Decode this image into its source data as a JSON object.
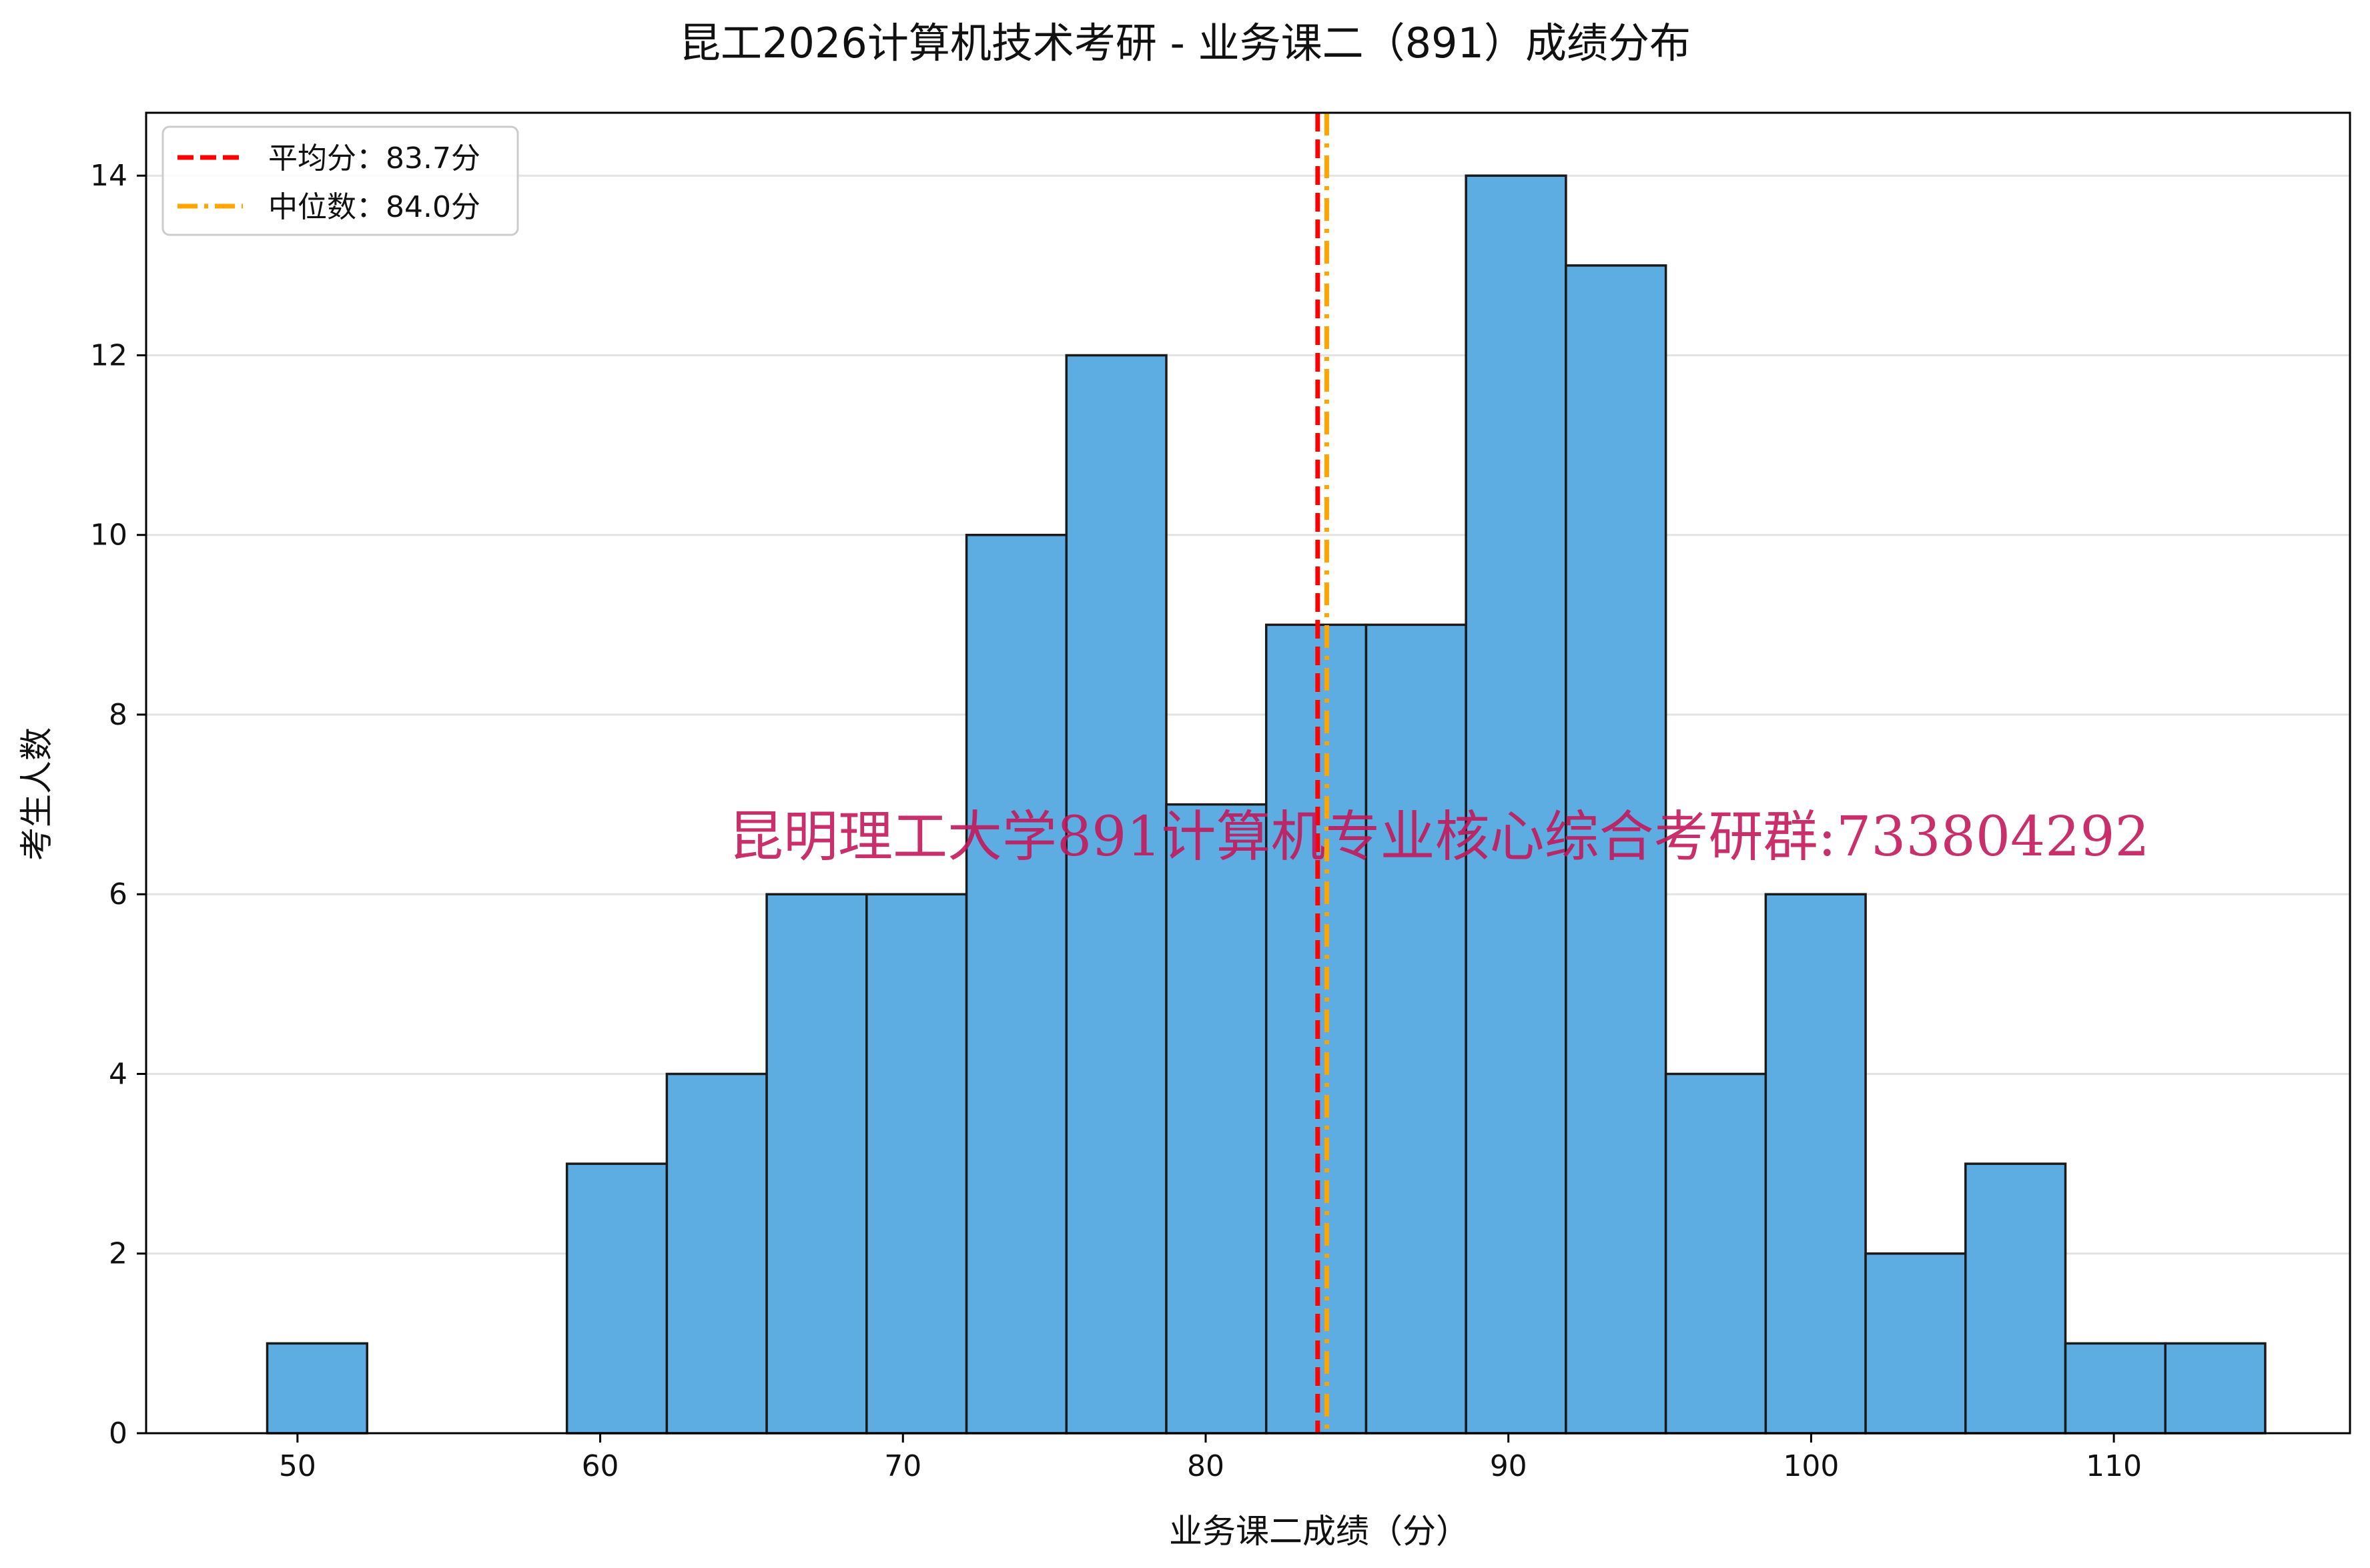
{
  "chart_data": {
    "type": "bar",
    "title": "昆工2026计算机技术考研 - 业务课二（891）成绩分布",
    "xlabel": "业务课二成绩（分）",
    "ylabel": "考生人数",
    "xlim": [
      45,
      117.8
    ],
    "ylim": [
      0,
      14.7
    ],
    "xticks": [
      50,
      60,
      70,
      80,
      90,
      100,
      110
    ],
    "yticks": [
      0,
      2,
      4,
      6,
      8,
      10,
      12,
      14
    ],
    "grid": "horizontal",
    "legend_position": "top-left",
    "bins": [
      {
        "start": 49.0,
        "end": 52.3,
        "count": 1
      },
      {
        "start": 52.3,
        "end": 55.6,
        "count": 0
      },
      {
        "start": 55.6,
        "end": 58.9,
        "count": 0
      },
      {
        "start": 58.9,
        "end": 62.2,
        "count": 3
      },
      {
        "start": 62.2,
        "end": 65.5,
        "count": 4
      },
      {
        "start": 65.5,
        "end": 68.8,
        "count": 6
      },
      {
        "start": 68.8,
        "end": 72.1,
        "count": 6
      },
      {
        "start": 72.1,
        "end": 75.4,
        "count": 10
      },
      {
        "start": 75.4,
        "end": 78.7,
        "count": 12
      },
      {
        "start": 78.7,
        "end": 82.0,
        "count": 7
      },
      {
        "start": 82.0,
        "end": 85.3,
        "count": 9
      },
      {
        "start": 85.3,
        "end": 88.6,
        "count": 9
      },
      {
        "start": 88.6,
        "end": 91.9,
        "count": 14
      },
      {
        "start": 91.9,
        "end": 95.2,
        "count": 13
      },
      {
        "start": 95.2,
        "end": 98.5,
        "count": 4
      },
      {
        "start": 98.5,
        "end": 101.8,
        "count": 6
      },
      {
        "start": 101.8,
        "end": 105.1,
        "count": 2
      },
      {
        "start": 105.1,
        "end": 108.4,
        "count": 3
      },
      {
        "start": 108.4,
        "end": 111.7,
        "count": 1
      },
      {
        "start": 111.7,
        "end": 115.0,
        "count": 1
      }
    ],
    "mean": {
      "value": 83.7,
      "label": "平均分：83.7分",
      "color": "#ff0000",
      "style": "dashed"
    },
    "median": {
      "value": 84.0,
      "label": "中位数：84.0分",
      "color": "#ffa500",
      "style": "dash-dot"
    },
    "colors": {
      "bar_fill": "#5dade2",
      "bar_edge": "#1a1a1a",
      "grid": "#e3e3e3",
      "axis": "#000000"
    }
  },
  "watermark": {
    "text": "昆明理工大学891计算机专业核心综合考研群:733804292",
    "color": "#c2185b"
  }
}
